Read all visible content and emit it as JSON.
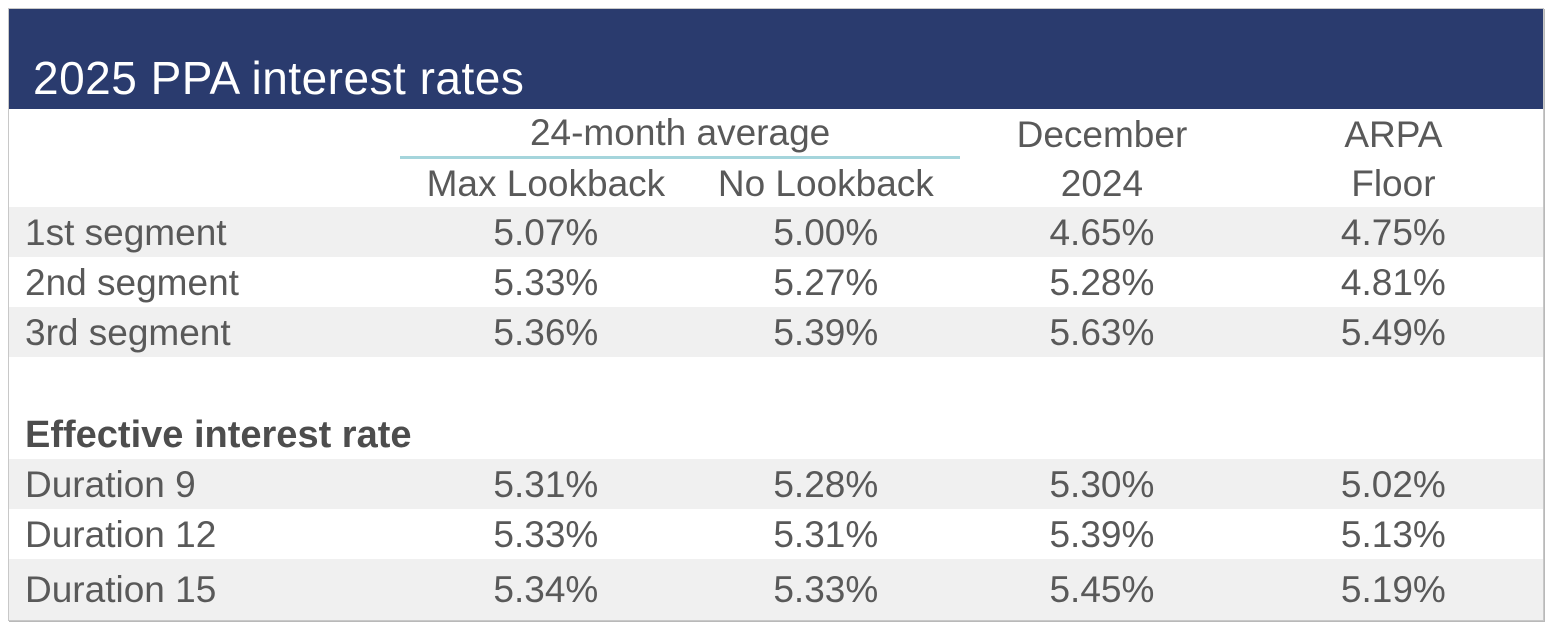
{
  "title": "2025 PPA interest rates",
  "header": {
    "group_label": "24-month average",
    "sub_col_1": "Max Lookback",
    "sub_col_2": "No Lookback",
    "col_3_line_1": "December",
    "col_3_line_2": "2024",
    "col_4_line_1": "ARPA",
    "col_4_line_2": "Floor"
  },
  "section_heading": "Effective interest rate",
  "rows": [
    {
      "label": "1st segment",
      "values": [
        "5.07%",
        "5.00%",
        "4.65%",
        "4.75%"
      ]
    },
    {
      "label": "2nd segment",
      "values": [
        "5.33%",
        "5.27%",
        "5.28%",
        "4.81%"
      ]
    },
    {
      "label": "3rd segment",
      "values": [
        "5.36%",
        "5.39%",
        "5.63%",
        "5.49%"
      ]
    },
    {
      "label": "Duration 9",
      "values": [
        "5.31%",
        "5.28%",
        "5.30%",
        "5.02%"
      ]
    },
    {
      "label": "Duration 12",
      "values": [
        "5.33%",
        "5.31%",
        "5.39%",
        "5.13%"
      ]
    },
    {
      "label": "Duration 15",
      "values": [
        "5.34%",
        "5.33%",
        "5.45%",
        "5.19%"
      ]
    }
  ],
  "colors": {
    "banner": "#2a3b6e",
    "text": "#595959",
    "stripe": "#f0f0f0",
    "accent_underline": "#a5d5dc",
    "border": "#c8c8c8"
  },
  "chart_data": {
    "type": "table",
    "title": "2025 PPA interest rates",
    "column_groups": [
      {
        "label": "24-month average",
        "covers": [
          "Max Lookback",
          "No Lookback"
        ]
      }
    ],
    "columns": [
      "Max Lookback",
      "No Lookback",
      "December 2024",
      "ARPA Floor"
    ],
    "sections": [
      {
        "heading": "",
        "rows": [
          {
            "label": "1st segment",
            "values": [
              "5.07%",
              "5.00%",
              "4.65%",
              "4.75%"
            ]
          },
          {
            "label": "2nd segment",
            "values": [
              "5.33%",
              "5.27%",
              "5.28%",
              "4.81%"
            ]
          },
          {
            "label": "3rd segment",
            "values": [
              "5.36%",
              "5.39%",
              "5.63%",
              "5.49%"
            ]
          }
        ]
      },
      {
        "heading": "Effective interest rate",
        "rows": [
          {
            "label": "Duration 9",
            "values": [
              "5.31%",
              "5.28%",
              "5.30%",
              "5.02%"
            ]
          },
          {
            "label": "Duration 12",
            "values": [
              "5.33%",
              "5.31%",
              "5.39%",
              "5.13%"
            ]
          },
          {
            "label": "Duration 15",
            "values": [
              "5.34%",
              "5.33%",
              "5.45%",
              "5.19%"
            ]
          }
        ]
      }
    ]
  }
}
